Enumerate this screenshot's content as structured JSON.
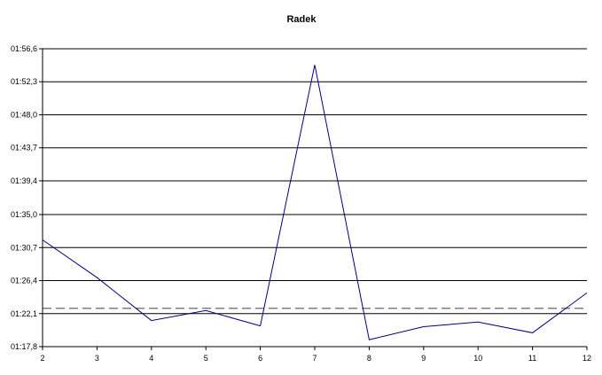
{
  "chart_data": {
    "type": "line",
    "title": "Radek",
    "xlabel": "",
    "ylabel": "",
    "x": [
      "2",
      "3",
      "4",
      "5",
      "6",
      "7",
      "8",
      "9",
      "10",
      "11",
      "12"
    ],
    "y_tick_labels": [
      "01:17,8",
      "01:22,1",
      "01:26,4",
      "01:30,7",
      "01:35,0",
      "01:39,4",
      "01:43,7",
      "01:48,0",
      "01:52,3",
      "01:56,6"
    ],
    "ylim": [
      "01:17,8",
      "01:56,6"
    ],
    "grid": "horizontal",
    "series": [
      {
        "color": "#000080",
        "values": [
          "01:31,7",
          "01:26,8",
          "01:21,2",
          "01:22,5",
          "01:20,5",
          "01:54,5",
          "01:18,7",
          "01:20,4",
          "01:21,0",
          "01:19,6",
          "01:24,8"
        ]
      }
    ],
    "reference_line": {
      "value": "01:22,8",
      "style": "dashed",
      "color": "#808080"
    }
  }
}
